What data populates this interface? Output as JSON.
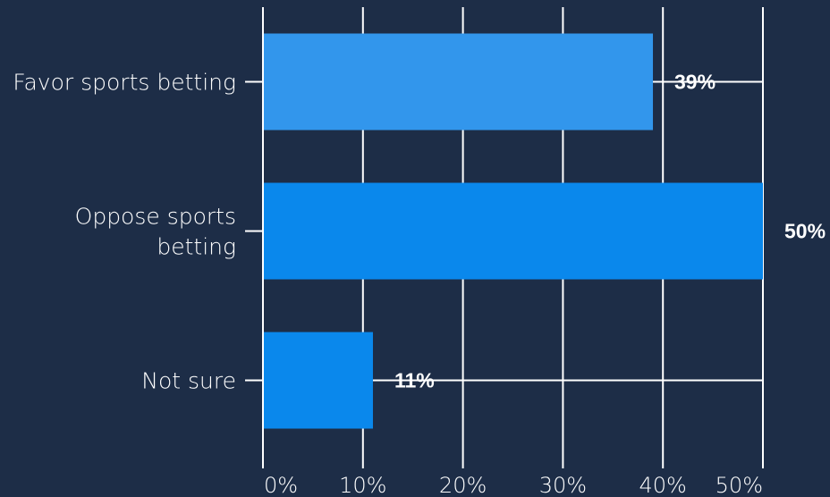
{
  "chart_data": {
    "type": "bar",
    "orientation": "horizontal",
    "categories": [
      "Favor sports betting",
      "Oppose sports betting",
      "Not sure"
    ],
    "category_lines": [
      [
        "Favor sports betting"
      ],
      [
        "Oppose sports",
        "betting"
      ],
      [
        "Not sure"
      ]
    ],
    "values": [
      39,
      50,
      11
    ],
    "data_labels": [
      "39%",
      "50%",
      "11%"
    ],
    "bar_colors": [
      "#3296ec",
      "#0a88ec",
      "#0a88ec"
    ],
    "xlim": [
      0,
      50
    ],
    "x_ticks": [
      0,
      10,
      20,
      30,
      40,
      50
    ],
    "x_tick_labels": [
      "0%",
      "10%",
      "20%",
      "30%",
      "40%",
      "50%"
    ],
    "grid": true,
    "text_color": "#ffffff",
    "background": "#1d2d47"
  }
}
